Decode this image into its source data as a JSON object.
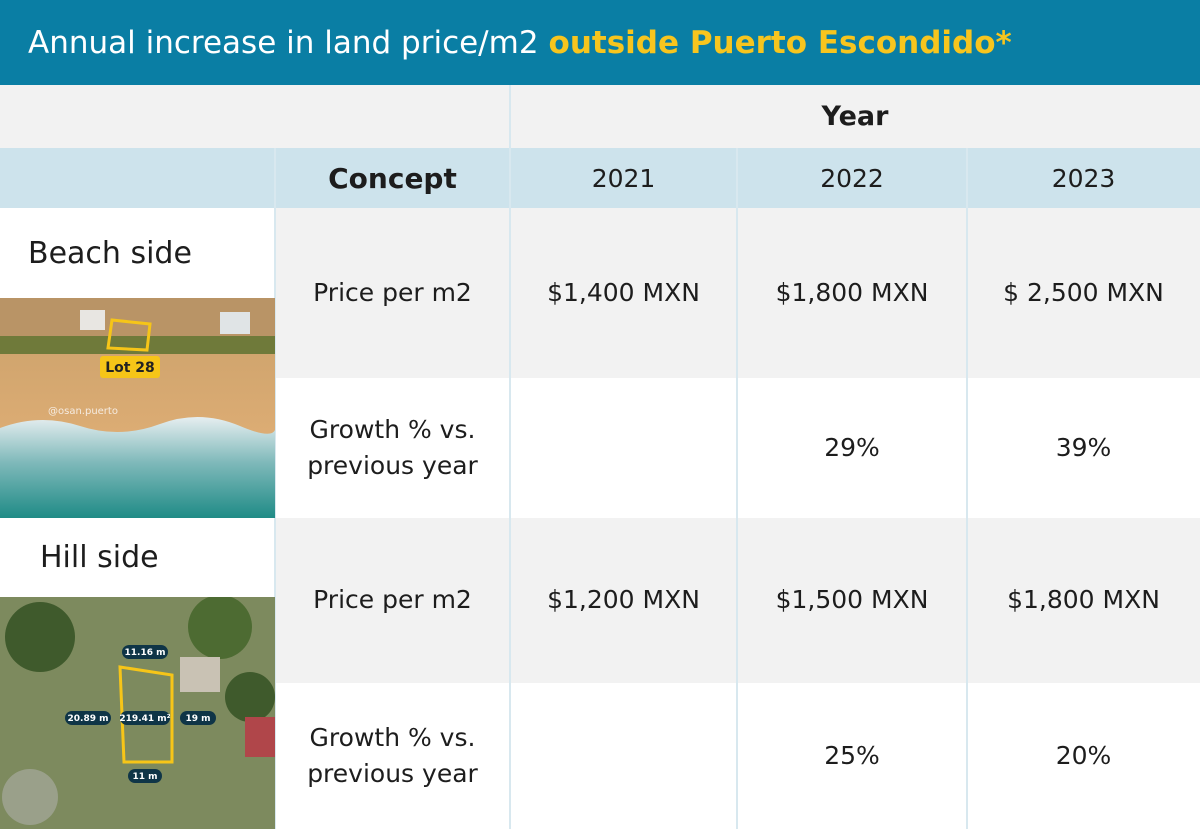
{
  "header": {
    "title": "Annual increase in land price/m2",
    "highlight": "outside Puerto Escondido*"
  },
  "table": {
    "group_header": "Year",
    "columns": [
      "Concept",
      "2021",
      "2022",
      "2023"
    ],
    "sections": [
      {
        "label": "Beach side",
        "image_labels": [
          "Lot 28",
          "@osan.puerto"
        ],
        "rows": [
          [
            "Price per m2",
            "$1,400 MXN",
            "$1,800 MXN",
            "$ 2,500 MXN"
          ],
          [
            "Growth % vs. previous year",
            null,
            "29%",
            "39%"
          ]
        ]
      },
      {
        "label": "Hill side",
        "image_labels": [
          "11.16 m",
          "20.89 m",
          "219.41 m²",
          "19 m",
          "11 m"
        ],
        "rows": [
          [
            "Price per m2",
            "$1,200 MXN",
            "$1,500 MXN",
            "$1,800 MXN"
          ],
          [
            "Growth % vs. previous year",
            null,
            "25%",
            "20%"
          ]
        ]
      }
    ]
  }
}
